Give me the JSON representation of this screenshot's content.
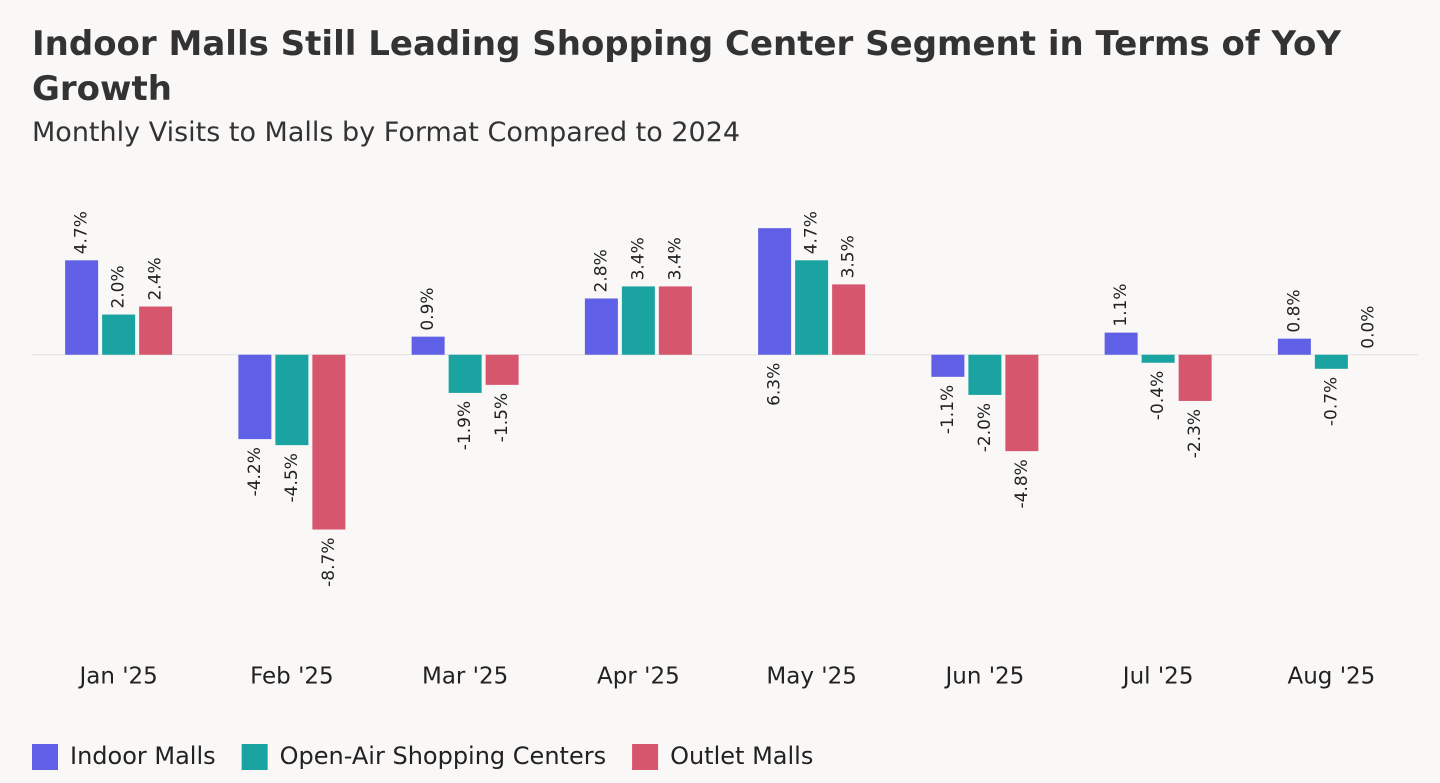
{
  "chart_data": {
    "type": "bar",
    "title": "Indoor Malls Still Leading Shopping Center Segment in Terms of YoY Growth",
    "subtitle": "Monthly Visits to Malls by Format Compared to 2024",
    "categories": [
      "Jan '25",
      "Feb '25",
      "Mar '25",
      "Apr '25",
      "May '25",
      "Jun '25",
      "Jul '25",
      "Aug '25"
    ],
    "series": [
      {
        "name": "Indoor Malls",
        "color": "#6060e6",
        "values": [
          4.7,
          -4.2,
          0.9,
          2.8,
          6.3,
          -1.1,
          1.1,
          0.8
        ],
        "value_labels": [
          "4.7%",
          "-4.2%",
          "0.9%",
          "2.8%",
          "6.3%",
          "-1.1%",
          "1.1%",
          "0.8%"
        ]
      },
      {
        "name": "Open-Air Shopping Centers",
        "color": "#1aa3a0",
        "values": [
          2.0,
          -4.5,
          -1.9,
          3.4,
          4.7,
          -2.0,
          -0.4,
          -0.7
        ],
        "value_labels": [
          "2.0%",
          "-4.5%",
          "-1.9%",
          "3.4%",
          "4.7%",
          "-2.0%",
          "-0.4%",
          "-0.7%"
        ]
      },
      {
        "name": "Outlet Malls",
        "color": "#d6566e",
        "values": [
          2.4,
          -8.7,
          -1.5,
          3.4,
          3.5,
          -4.8,
          -2.3,
          0.0
        ],
        "value_labels": [
          "2.4%",
          "-8.7%",
          "-1.5%",
          "3.4%",
          "3.5%",
          "-4.8%",
          "-2.3%",
          "0.0%"
        ]
      }
    ],
    "ylim": [
      -14,
      8
    ],
    "legend": "bottom-left"
  }
}
